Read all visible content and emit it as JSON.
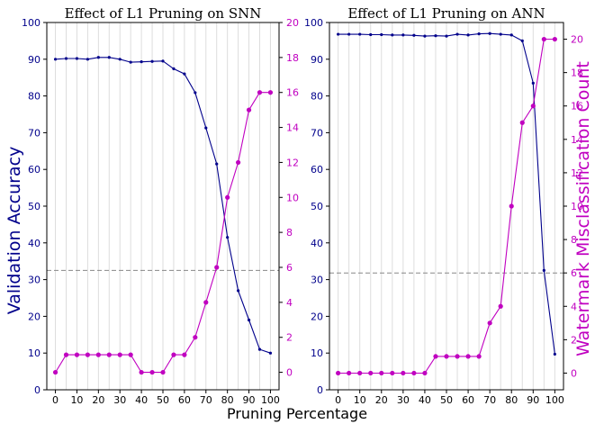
{
  "figure": {
    "xlabel": "Pruning Percentage",
    "ylabel_left": "Validation Accuracy",
    "ylabel_right": "Watermark Misclassification Count"
  },
  "colors": {
    "accuracy": "#00008b",
    "misclassification": "#c000c0",
    "reference_line": "#888888",
    "grid": "#dddddd"
  },
  "chart_data": [
    {
      "type": "line",
      "title": "Effect of L1 Pruning on SNN",
      "x": [
        0,
        5,
        10,
        15,
        20,
        25,
        30,
        35,
        40,
        45,
        50,
        55,
        60,
        65,
        70,
        75,
        80,
        85,
        90,
        95,
        100
      ],
      "x_ticks": [
        0,
        10,
        20,
        30,
        40,
        50,
        60,
        70,
        80,
        90,
        100
      ],
      "grid": "vertical",
      "ylim_left": [
        0,
        100
      ],
      "y_ticks_left": [
        0,
        10,
        20,
        30,
        40,
        50,
        60,
        70,
        80,
        90,
        100
      ],
      "ylim_right": [
        -1,
        20
      ],
      "y_ticks_right": [
        0,
        2,
        4,
        6,
        8,
        10,
        12,
        14,
        16,
        18,
        20
      ],
      "reference_line_left": 32.5,
      "series": [
        {
          "axis": "left",
          "color": "#00008b",
          "values": [
            90.0,
            90.2,
            90.2,
            90.0,
            90.5,
            90.5,
            90.0,
            89.2,
            89.3,
            89.4,
            89.5,
            87.4,
            86.0,
            80.9,
            71.3,
            61.5,
            41.5,
            27.0,
            19.0,
            11.0,
            10.0
          ]
        },
        {
          "axis": "right",
          "color": "#c000c0",
          "values": [
            0,
            1,
            1,
            1,
            1,
            1,
            1,
            1,
            0,
            0,
            0,
            1,
            1,
            2,
            4,
            6,
            10,
            12,
            15,
            16,
            16
          ]
        }
      ]
    },
    {
      "type": "line",
      "title": "Effect of L1 Pruning on ANN",
      "x": [
        0,
        5,
        10,
        15,
        20,
        25,
        30,
        35,
        40,
        45,
        50,
        55,
        60,
        65,
        70,
        75,
        80,
        85,
        90,
        95,
        100
      ],
      "x_ticks": [
        0,
        10,
        20,
        30,
        40,
        50,
        60,
        70,
        80,
        90,
        100
      ],
      "grid": "vertical",
      "ylim_left": [
        0,
        100
      ],
      "y_ticks_left": [
        0,
        10,
        20,
        30,
        40,
        50,
        60,
        70,
        80,
        90,
        100
      ],
      "ylim_right": [
        -1,
        21
      ],
      "y_ticks_right": [
        0,
        2,
        4,
        6,
        8,
        10,
        12,
        14,
        16,
        18,
        20
      ],
      "reference_line_left": 31.8,
      "series": [
        {
          "axis": "left",
          "color": "#00008b",
          "values": [
            96.8,
            96.8,
            96.8,
            96.7,
            96.7,
            96.6,
            96.6,
            96.5,
            96.3,
            96.4,
            96.3,
            96.8,
            96.6,
            96.9,
            97.0,
            96.8,
            96.6,
            95.0,
            83.5,
            32.5,
            9.7
          ]
        },
        {
          "axis": "right",
          "color": "#c000c0",
          "values": [
            0,
            0,
            0,
            0,
            0,
            0,
            0,
            0,
            0,
            1,
            1,
            1,
            1,
            1,
            3,
            4,
            10,
            15,
            16,
            20,
            20
          ]
        }
      ]
    }
  ]
}
